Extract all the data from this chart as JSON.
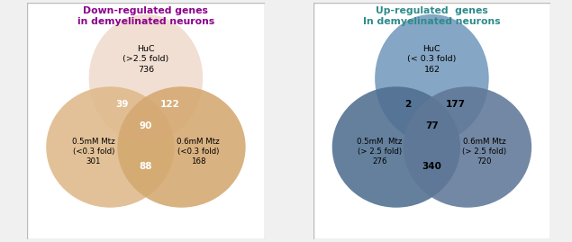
{
  "left_title": "Down-regulated genes\nin demyelinated neurons",
  "left_title_color": "#8B008B",
  "right_title": "Up-regulated  genes\nIn demyelinated neurons",
  "right_title_color": "#2E8B8B",
  "left": {
    "top_label": "HuC\n(>2.5 fold)\n736",
    "bottom_left_label": "0.5mM Mtz\n(<0.3 fold)\n301",
    "bottom_right_label": "0.6mM Mtz\n(<0.3 fold)\n168",
    "intersect_top_left": "39",
    "intersect_top_right": "122",
    "intersect_bottom": "88",
    "intersect_center": "90",
    "top_circle_color": "#F0DDD0",
    "bottom_left_circle_color": "#DFB98A",
    "bottom_right_circle_color": "#D4A870",
    "intersect_text_color": "white"
  },
  "right": {
    "top_label": "HuC\n(< 0.3 fold)\n162",
    "bottom_left_label": "0.5mM  Mtz\n(> 2.5 fold)\n276",
    "bottom_right_label": "0.6mM Mtz\n(> 2.5 fold)\n720",
    "intersect_top_left": "2",
    "intersect_top_right": "177",
    "intersect_bottom": "340",
    "intersect_center": "77",
    "top_circle_color": "#7B9FBF",
    "bottom_left_circle_color": "#4F6E90",
    "bottom_right_circle_color": "#607898",
    "intersect_text_color": "black"
  },
  "bg_color": "#F0F0F0",
  "panel_bg": "#FFFFFF",
  "border_color": "#BBBBBB",
  "figwidth": 6.35,
  "figheight": 2.69,
  "dpi": 100
}
